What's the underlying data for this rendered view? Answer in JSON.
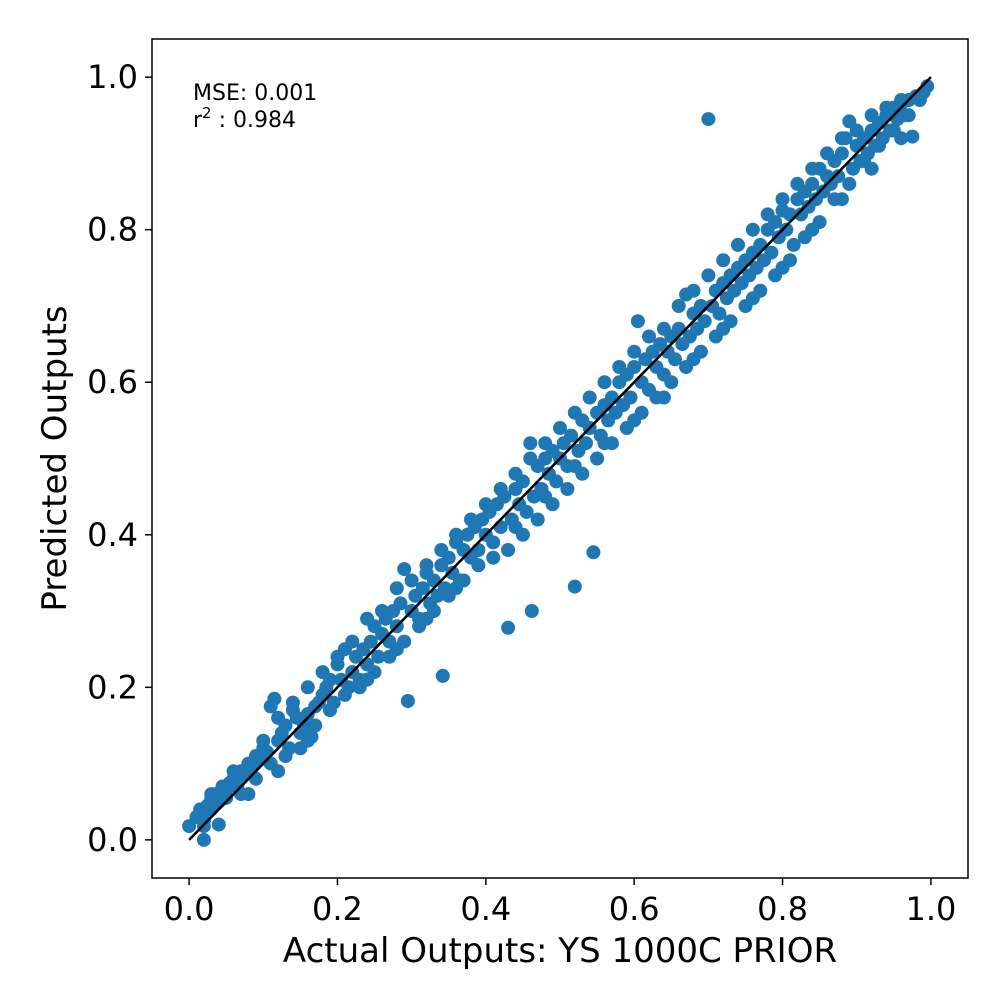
{
  "chart_data": {
    "type": "scatter",
    "title": "",
    "xlabel": "Actual Outputs: YS 1000C PRIOR",
    "ylabel": "Predicted Outputs",
    "xlim": [
      -0.05,
      1.05
    ],
    "ylim": [
      -0.05,
      1.05
    ],
    "xticks": [
      "0.0",
      "0.2",
      "0.4",
      "0.6",
      "0.8",
      "1.0"
    ],
    "yticks": [
      "0.0",
      "0.2",
      "0.4",
      "0.6",
      "0.8",
      "1.0"
    ],
    "grid": false,
    "marker_color": "#1f77b4",
    "line_color": "#000000",
    "annotations": {
      "mse_text": "MSE: 0.001",
      "r2_prefix": "r",
      "r2_sup": "2",
      "r2_suffix": " : 0.984"
    },
    "reference_line": {
      "x": [
        0.0,
        1.0
      ],
      "y": [
        0.0,
        1.0
      ]
    },
    "points": [
      [
        0.0,
        0.018
      ],
      [
        0.01,
        0.03
      ],
      [
        0.015,
        0.04
      ],
      [
        0.02,
        0.025
      ],
      [
        0.025,
        0.045
      ],
      [
        0.03,
        0.055
      ],
      [
        0.035,
        0.06
      ],
      [
        0.04,
        0.05
      ],
      [
        0.045,
        0.07
      ],
      [
        0.05,
        0.065
      ],
      [
        0.055,
        0.075
      ],
      [
        0.06,
        0.08
      ],
      [
        0.065,
        0.07
      ],
      [
        0.07,
        0.09
      ],
      [
        0.075,
        0.085
      ],
      [
        0.08,
        0.1
      ],
      [
        0.085,
        0.095
      ],
      [
        0.09,
        0.11
      ],
      [
        0.095,
        0.105
      ],
      [
        0.1,
        0.12
      ],
      [
        0.105,
        0.115
      ],
      [
        0.11,
        0.175
      ],
      [
        0.115,
        0.185
      ],
      [
        0.12,
        0.13
      ],
      [
        0.125,
        0.14
      ],
      [
        0.13,
        0.15
      ],
      [
        0.135,
        0.12
      ],
      [
        0.14,
        0.17
      ],
      [
        0.145,
        0.16
      ],
      [
        0.15,
        0.14
      ],
      [
        0.155,
        0.15
      ],
      [
        0.16,
        0.165
      ],
      [
        0.165,
        0.135
      ],
      [
        0.17,
        0.175
      ],
      [
        0.175,
        0.18
      ],
      [
        0.18,
        0.19
      ],
      [
        0.185,
        0.2
      ],
      [
        0.19,
        0.21
      ],
      [
        0.195,
        0.18
      ],
      [
        0.2,
        0.23
      ],
      [
        0.205,
        0.21
      ],
      [
        0.21,
        0.25
      ],
      [
        0.215,
        0.2
      ],
      [
        0.22,
        0.22
      ],
      [
        0.225,
        0.24
      ],
      [
        0.23,
        0.21
      ],
      [
        0.235,
        0.25
      ],
      [
        0.24,
        0.23
      ],
      [
        0.245,
        0.26
      ],
      [
        0.25,
        0.28
      ],
      [
        0.255,
        0.24
      ],
      [
        0.26,
        0.27
      ],
      [
        0.265,
        0.29
      ],
      [
        0.27,
        0.26
      ],
      [
        0.275,
        0.3
      ],
      [
        0.28,
        0.28
      ],
      [
        0.285,
        0.31
      ],
      [
        0.29,
        0.355
      ],
      [
        0.295,
        0.182
      ],
      [
        0.3,
        0.3
      ],
      [
        0.305,
        0.32
      ],
      [
        0.31,
        0.29
      ],
      [
        0.315,
        0.33
      ],
      [
        0.32,
        0.35
      ],
      [
        0.325,
        0.31
      ],
      [
        0.33,
        0.34
      ],
      [
        0.335,
        0.32
      ],
      [
        0.34,
        0.36
      ],
      [
        0.342,
        0.215
      ],
      [
        0.345,
        0.33
      ],
      [
        0.35,
        0.37
      ],
      [
        0.355,
        0.35
      ],
      [
        0.36,
        0.39
      ],
      [
        0.365,
        0.34
      ],
      [
        0.37,
        0.38
      ],
      [
        0.375,
        0.4
      ],
      [
        0.38,
        0.37
      ],
      [
        0.385,
        0.41
      ],
      [
        0.39,
        0.38
      ],
      [
        0.395,
        0.42
      ],
      [
        0.4,
        0.4
      ],
      [
        0.405,
        0.43
      ],
      [
        0.41,
        0.39
      ],
      [
        0.415,
        0.44
      ],
      [
        0.42,
        0.41
      ],
      [
        0.425,
        0.45
      ],
      [
        0.43,
        0.278
      ],
      [
        0.435,
        0.42
      ],
      [
        0.44,
        0.46
      ],
      [
        0.445,
        0.44
      ],
      [
        0.45,
        0.47
      ],
      [
        0.455,
        0.43
      ],
      [
        0.46,
        0.52
      ],
      [
        0.462,
        0.3
      ],
      [
        0.465,
        0.45
      ],
      [
        0.47,
        0.49
      ],
      [
        0.475,
        0.46
      ],
      [
        0.48,
        0.5
      ],
      [
        0.485,
        0.48
      ],
      [
        0.49,
        0.51
      ],
      [
        0.495,
        0.47
      ],
      [
        0.5,
        0.5
      ],
      [
        0.505,
        0.52
      ],
      [
        0.51,
        0.49
      ],
      [
        0.515,
        0.53
      ],
      [
        0.52,
        0.332
      ],
      [
        0.525,
        0.51
      ],
      [
        0.53,
        0.55
      ],
      [
        0.535,
        0.52
      ],
      [
        0.54,
        0.54
      ],
      [
        0.545,
        0.377
      ],
      [
        0.55,
        0.56
      ],
      [
        0.555,
        0.53
      ],
      [
        0.56,
        0.57
      ],
      [
        0.565,
        0.55
      ],
      [
        0.57,
        0.58
      ],
      [
        0.575,
        0.56
      ],
      [
        0.58,
        0.6
      ],
      [
        0.585,
        0.57
      ],
      [
        0.59,
        0.61
      ],
      [
        0.595,
        0.58
      ],
      [
        0.6,
        0.62
      ],
      [
        0.605,
        0.68
      ],
      [
        0.61,
        0.6
      ],
      [
        0.615,
        0.63
      ],
      [
        0.62,
        0.59
      ],
      [
        0.625,
        0.64
      ],
      [
        0.63,
        0.62
      ],
      [
        0.635,
        0.65
      ],
      [
        0.64,
        0.61
      ],
      [
        0.645,
        0.64
      ],
      [
        0.65,
        0.66
      ],
      [
        0.655,
        0.63
      ],
      [
        0.66,
        0.67
      ],
      [
        0.665,
        0.65
      ],
      [
        0.67,
        0.715
      ],
      [
        0.675,
        0.66
      ],
      [
        0.68,
        0.69
      ],
      [
        0.685,
        0.67
      ],
      [
        0.69,
        0.7
      ],
      [
        0.695,
        0.68
      ],
      [
        0.7,
        0.945
      ],
      [
        0.705,
        0.7
      ],
      [
        0.71,
        0.72
      ],
      [
        0.715,
        0.69
      ],
      [
        0.72,
        0.73
      ],
      [
        0.725,
        0.71
      ],
      [
        0.73,
        0.74
      ],
      [
        0.735,
        0.72
      ],
      [
        0.74,
        0.75
      ],
      [
        0.745,
        0.73
      ],
      [
        0.75,
        0.76
      ],
      [
        0.755,
        0.74
      ],
      [
        0.76,
        0.77
      ],
      [
        0.765,
        0.75
      ],
      [
        0.77,
        0.78
      ],
      [
        0.775,
        0.76
      ],
      [
        0.78,
        0.8
      ],
      [
        0.785,
        0.77
      ],
      [
        0.79,
        0.81
      ],
      [
        0.795,
        0.79
      ],
      [
        0.8,
        0.825
      ],
      [
        0.805,
        0.8
      ],
      [
        0.81,
        0.82
      ],
      [
        0.815,
        0.78
      ],
      [
        0.82,
        0.84
      ],
      [
        0.825,
        0.82
      ],
      [
        0.83,
        0.85
      ],
      [
        0.835,
        0.83
      ],
      [
        0.84,
        0.86
      ],
      [
        0.845,
        0.84
      ],
      [
        0.85,
        0.88
      ],
      [
        0.855,
        0.85
      ],
      [
        0.86,
        0.87
      ],
      [
        0.865,
        0.86
      ],
      [
        0.87,
        0.89
      ],
      [
        0.875,
        0.87
      ],
      [
        0.88,
        0.9
      ],
      [
        0.885,
        0.92
      ],
      [
        0.89,
        0.942
      ],
      [
        0.895,
        0.88
      ],
      [
        0.9,
        0.91
      ],
      [
        0.905,
        0.89
      ],
      [
        0.91,
        0.92
      ],
      [
        0.915,
        0.9
      ],
      [
        0.92,
        0.93
      ],
      [
        0.925,
        0.91
      ],
      [
        0.93,
        0.94
      ],
      [
        0.935,
        0.92
      ],
      [
        0.94,
        0.95
      ],
      [
        0.945,
        0.93
      ],
      [
        0.95,
        0.96
      ],
      [
        0.955,
        0.945
      ],
      [
        0.96,
        0.965
      ],
      [
        0.965,
        0.95
      ],
      [
        0.97,
        0.97
      ],
      [
        0.975,
        0.922
      ],
      [
        0.98,
        0.975
      ],
      [
        0.985,
        0.97
      ],
      [
        0.99,
        0.98
      ],
      [
        0.995,
        0.988
      ],
      [
        0.02,
        0.018
      ],
      [
        0.03,
        0.04
      ],
      [
        0.05,
        0.055
      ],
      [
        0.07,
        0.06
      ],
      [
        0.09,
        0.08
      ],
      [
        0.11,
        0.1
      ],
      [
        0.13,
        0.11
      ],
      [
        0.15,
        0.12
      ],
      [
        0.17,
        0.15
      ],
      [
        0.19,
        0.17
      ],
      [
        0.21,
        0.19
      ],
      [
        0.23,
        0.2
      ],
      [
        0.25,
        0.22
      ],
      [
        0.27,
        0.24
      ],
      [
        0.29,
        0.26
      ],
      [
        0.31,
        0.28
      ],
      [
        0.33,
        0.3
      ],
      [
        0.35,
        0.32
      ],
      [
        0.37,
        0.34
      ],
      [
        0.39,
        0.36
      ],
      [
        0.41,
        0.37
      ],
      [
        0.43,
        0.38
      ],
      [
        0.45,
        0.4
      ],
      [
        0.47,
        0.42
      ],
      [
        0.49,
        0.44
      ],
      [
        0.51,
        0.46
      ],
      [
        0.53,
        0.48
      ],
      [
        0.55,
        0.5
      ],
      [
        0.57,
        0.52
      ],
      [
        0.59,
        0.54
      ],
      [
        0.61,
        0.56
      ],
      [
        0.63,
        0.58
      ],
      [
        0.65,
        0.6
      ],
      [
        0.67,
        0.62
      ],
      [
        0.69,
        0.64
      ],
      [
        0.71,
        0.66
      ],
      [
        0.73,
        0.68
      ],
      [
        0.75,
        0.7
      ],
      [
        0.77,
        0.72
      ],
      [
        0.79,
        0.74
      ],
      [
        0.81,
        0.76
      ],
      [
        0.83,
        0.79
      ],
      [
        0.85,
        0.81
      ],
      [
        0.87,
        0.84
      ],
      [
        0.89,
        0.86
      ],
      [
        0.91,
        0.89
      ],
      [
        0.93,
        0.91
      ],
      [
        0.95,
        0.93
      ],
      [
        0.97,
        0.95
      ],
      [
        0.03,
        0.06
      ],
      [
        0.06,
        0.09
      ],
      [
        0.1,
        0.13
      ],
      [
        0.14,
        0.18
      ],
      [
        0.18,
        0.22
      ],
      [
        0.22,
        0.26
      ],
      [
        0.26,
        0.3
      ],
      [
        0.3,
        0.34
      ],
      [
        0.34,
        0.38
      ],
      [
        0.38,
        0.42
      ],
      [
        0.42,
        0.46
      ],
      [
        0.46,
        0.5
      ],
      [
        0.5,
        0.54
      ],
      [
        0.54,
        0.58
      ],
      [
        0.58,
        0.62
      ],
      [
        0.62,
        0.66
      ],
      [
        0.66,
        0.7
      ],
      [
        0.7,
        0.74
      ],
      [
        0.74,
        0.78
      ],
      [
        0.78,
        0.82
      ],
      [
        0.82,
        0.86
      ],
      [
        0.86,
        0.9
      ],
      [
        0.9,
        0.93
      ],
      [
        0.94,
        0.96
      ],
      [
        0.12,
        0.16
      ],
      [
        0.16,
        0.2
      ],
      [
        0.2,
        0.24
      ],
      [
        0.24,
        0.29
      ],
      [
        0.28,
        0.33
      ],
      [
        0.32,
        0.36
      ],
      [
        0.36,
        0.4
      ],
      [
        0.4,
        0.44
      ],
      [
        0.44,
        0.48
      ],
      [
        0.48,
        0.52
      ],
      [
        0.52,
        0.56
      ],
      [
        0.56,
        0.6
      ],
      [
        0.6,
        0.64
      ],
      [
        0.64,
        0.67
      ],
      [
        0.68,
        0.72
      ],
      [
        0.72,
        0.76
      ],
      [
        0.76,
        0.8
      ],
      [
        0.8,
        0.84
      ],
      [
        0.84,
        0.88
      ],
      [
        0.88,
        0.92
      ],
      [
        0.92,
        0.95
      ],
      [
        0.96,
        0.97
      ],
      [
        0.02,
        0.0
      ],
      [
        0.04,
        0.02
      ],
      [
        0.08,
        0.06
      ],
      [
        0.12,
        0.09
      ],
      [
        0.16,
        0.13
      ],
      [
        0.24,
        0.21
      ],
      [
        0.28,
        0.25
      ],
      [
        0.32,
        0.29
      ],
      [
        0.36,
        0.33
      ],
      [
        0.44,
        0.41
      ],
      [
        0.48,
        0.45
      ],
      [
        0.52,
        0.49
      ],
      [
        0.56,
        0.52
      ],
      [
        0.6,
        0.55
      ],
      [
        0.64,
        0.58
      ],
      [
        0.68,
        0.63
      ],
      [
        0.72,
        0.67
      ],
      [
        0.76,
        0.71
      ],
      [
        0.8,
        0.75
      ],
      [
        0.84,
        0.8
      ],
      [
        0.88,
        0.84
      ],
      [
        0.92,
        0.88
      ],
      [
        0.96,
        0.92
      ]
    ]
  }
}
